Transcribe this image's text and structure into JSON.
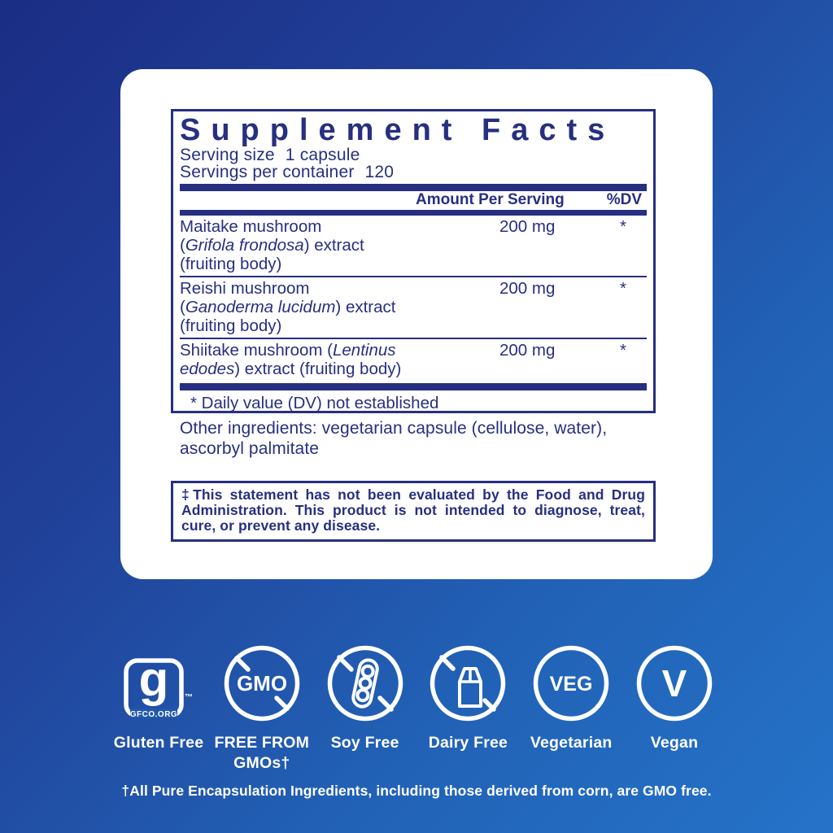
{
  "supplement_facts": {
    "title": "Supplement Facts",
    "serving_size_label": "Serving size",
    "serving_size_value": "1 capsule",
    "servings_label": "Servings per container",
    "servings_value": "120",
    "amount_header": "Amount Per Serving",
    "dv_header": "%DV",
    "rows": [
      {
        "lines": [
          [
            {
              "t": "Maitake mushroom"
            }
          ],
          [
            {
              "t": "("
            },
            {
              "t": "Grifola frondosa",
              "i": true
            },
            {
              "t": ") extract"
            }
          ],
          [
            {
              "t": "(fruiting body)"
            }
          ]
        ],
        "amount": "200 mg",
        "dv": "*"
      },
      {
        "lines": [
          [
            {
              "t": "Reishi mushroom"
            }
          ],
          [
            {
              "t": "("
            },
            {
              "t": "Ganoderma lucidum",
              "i": true
            },
            {
              "t": ") extract"
            }
          ],
          [
            {
              "t": "(fruiting body)"
            }
          ]
        ],
        "amount": "200 mg",
        "dv": "*"
      },
      {
        "lines": [
          [
            {
              "t": "Shiitake mushroom ("
            },
            {
              "t": "Lentinus",
              "i": true
            }
          ],
          [
            {
              "t": "edodes",
              "i": true
            },
            {
              "t": ") extract (fruiting body)"
            }
          ]
        ],
        "amount": "200 mg",
        "dv": "*"
      }
    ],
    "footnote": "* Daily value (DV) not established"
  },
  "other_ingredients": "Other ingredients: vegetarian capsule (cellulose, water), ascorbyl palmitate",
  "fda_disclaimer": "‡This statement has not been evaluated by the Food and Drug Administration. This product is not intended to diagnose, treat, cure, or prevent any disease.",
  "badges": [
    {
      "label": "Gluten Free",
      "org": "GFCO.ORG",
      "tm": "™",
      "glyph": "g"
    },
    {
      "label": "FREE FROM GMOs†",
      "circle_text": "GMO"
    },
    {
      "label": "Soy Free"
    },
    {
      "label": "Dairy Free"
    },
    {
      "label": "Vegetarian",
      "circle_text": "VEG"
    },
    {
      "label": "Vegan",
      "circle_text": "V"
    }
  ],
  "footer_note": "†All Pure Encapsulation Ingredients, including those derived from corn, are GMO free.",
  "colors": {
    "navy": "#272f80",
    "white": "#ffffff",
    "background_top": "#1b2d85",
    "background_bottom": "#2573c9"
  }
}
